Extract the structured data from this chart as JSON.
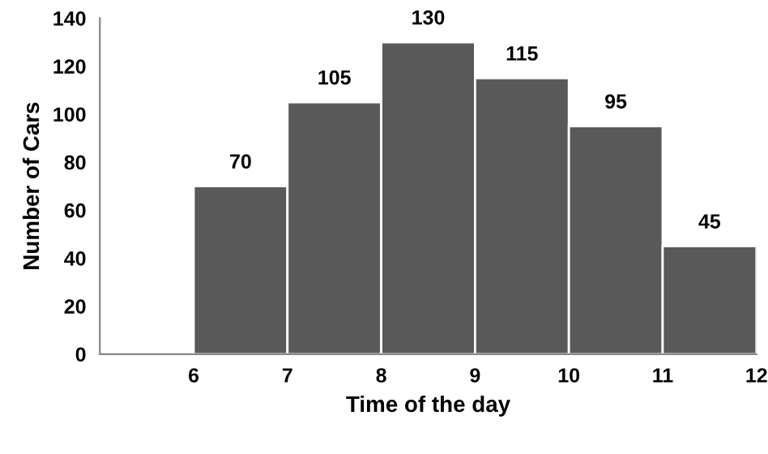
{
  "chart_data": {
    "type": "histogram",
    "xlabel": "Time of the day",
    "ylabel": "Number of Cars",
    "bins": [
      6,
      7,
      8,
      9,
      10,
      11,
      12
    ],
    "values": [
      70,
      105,
      130,
      115,
      95,
      45
    ],
    "color": "#595959",
    "data_labels": true,
    "xlim": [
      5,
      12
    ],
    "xticks": [
      6,
      7,
      8,
      9,
      10,
      11,
      12
    ],
    "ylim": [
      0,
      140
    ],
    "yticks": [
      0,
      20,
      40,
      60,
      80,
      100,
      120,
      140
    ]
  }
}
